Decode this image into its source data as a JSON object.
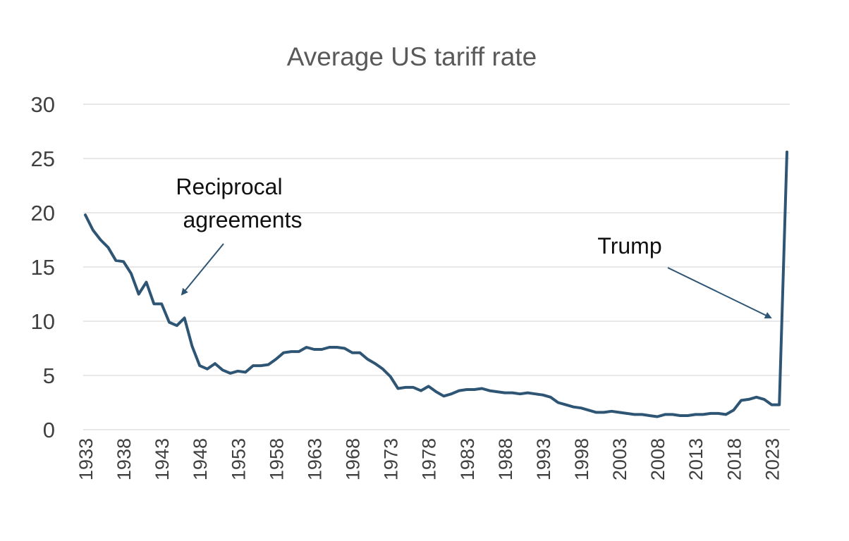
{
  "chart_data": {
    "type": "line",
    "title": "Average US tariff rate",
    "xlabel": "",
    "ylabel": "",
    "ylim": [
      0,
      30
    ],
    "xlim": [
      1933,
      2025
    ],
    "yticks": [
      0,
      5,
      10,
      15,
      20,
      25,
      30
    ],
    "xticks": [
      1933,
      1938,
      1943,
      1948,
      1953,
      1958,
      1963,
      1968,
      1973,
      1978,
      1983,
      1988,
      1993,
      1998,
      2003,
      2008,
      2013,
      2018,
      2023
    ],
    "grid": true,
    "legend": "none",
    "colors": {
      "line": "#2e5574",
      "arrow": "#2e5574",
      "grid": "#d9d9d9"
    },
    "series": [
      {
        "name": "",
        "x": [
          1933,
          1934,
          1935,
          1936,
          1937,
          1938,
          1939,
          1940,
          1941,
          1942,
          1943,
          1944,
          1945,
          1946,
          1947,
          1948,
          1949,
          1950,
          1951,
          1952,
          1953,
          1954,
          1955,
          1956,
          1957,
          1958,
          1959,
          1960,
          1961,
          1962,
          1963,
          1964,
          1965,
          1966,
          1967,
          1968,
          1969,
          1970,
          1971,
          1972,
          1973,
          1974,
          1975,
          1976,
          1977,
          1978,
          1979,
          1980,
          1981,
          1982,
          1983,
          1984,
          1985,
          1986,
          1987,
          1988,
          1989,
          1990,
          1991,
          1992,
          1993,
          1994,
          1995,
          1996,
          1997,
          1998,
          1999,
          2000,
          2001,
          2002,
          2003,
          2004,
          2005,
          2006,
          2007,
          2008,
          2009,
          2010,
          2011,
          2012,
          2013,
          2014,
          2015,
          2016,
          2017,
          2018,
          2019,
          2020,
          2021,
          2022,
          2023,
          2024,
          2025
        ],
        "y": [
          19.8,
          18.4,
          17.5,
          16.8,
          15.6,
          15.5,
          14.4,
          12.5,
          13.6,
          11.6,
          11.6,
          9.9,
          9.6,
          10.3,
          7.7,
          5.9,
          5.6,
          6.1,
          5.5,
          5.2,
          5.4,
          5.3,
          5.9,
          5.9,
          6.0,
          6.5,
          7.1,
          7.2,
          7.2,
          7.6,
          7.4,
          7.4,
          7.6,
          7.6,
          7.5,
          7.1,
          7.1,
          6.5,
          6.1,
          5.6,
          4.9,
          3.8,
          3.9,
          3.9,
          3.6,
          4.0,
          3.5,
          3.1,
          3.3,
          3.6,
          3.7,
          3.7,
          3.8,
          3.6,
          3.5,
          3.4,
          3.4,
          3.3,
          3.4,
          3.3,
          3.2,
          3.0,
          2.5,
          2.3,
          2.1,
          2.0,
          1.8,
          1.6,
          1.6,
          1.7,
          1.6,
          1.5,
          1.4,
          1.4,
          1.3,
          1.2,
          1.4,
          1.4,
          1.3,
          1.3,
          1.4,
          1.4,
          1.5,
          1.5,
          1.4,
          1.8,
          2.7,
          2.8,
          3.0,
          2.8,
          2.3,
          2.3,
          25.6
        ]
      }
    ],
    "annotations": [
      {
        "text_lines": [
          "Reciprocal",
          "agreements"
        ]
      },
      {
        "text_lines": [
          "Trump"
        ]
      }
    ]
  }
}
